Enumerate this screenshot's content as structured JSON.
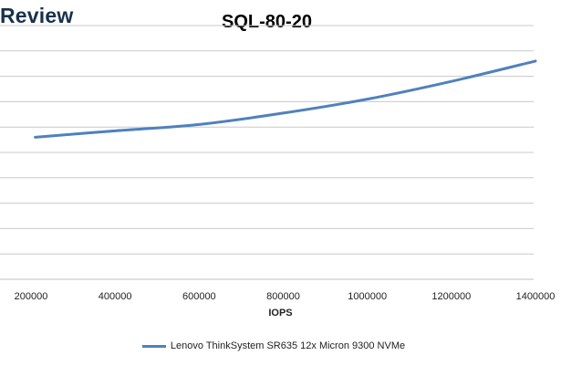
{
  "header": {
    "brand_text": "Review"
  },
  "chart_data": {
    "type": "line",
    "title": "SQL-80-20",
    "xlabel": "IOPS",
    "ylabel": "",
    "xlim": [
      167000,
      1400000
    ],
    "ylim": [
      0,
      10
    ],
    "x_ticks": [
      200000,
      400000,
      600000,
      800000,
      1000000,
      1200000,
      1400000
    ],
    "x_tick_labels": [
      "200000",
      "400000",
      "600000",
      "800000",
      "1000000",
      "1200000",
      "1400000"
    ],
    "y_gridlines": [
      1,
      2,
      3,
      4,
      5,
      6,
      7,
      8,
      9,
      10
    ],
    "grid": true,
    "legend_position": "bottom",
    "series": [
      {
        "name": "Lenovo ThinkSystem SR635 12x Micron 9300 NVMe",
        "color": "#4f81bd",
        "x": [
          210000,
          400000,
          600000,
          800000,
          1000000,
          1200000,
          1400000
        ],
        "y": [
          5.6,
          5.85,
          6.1,
          6.55,
          7.1,
          7.8,
          8.6
        ]
      }
    ]
  }
}
